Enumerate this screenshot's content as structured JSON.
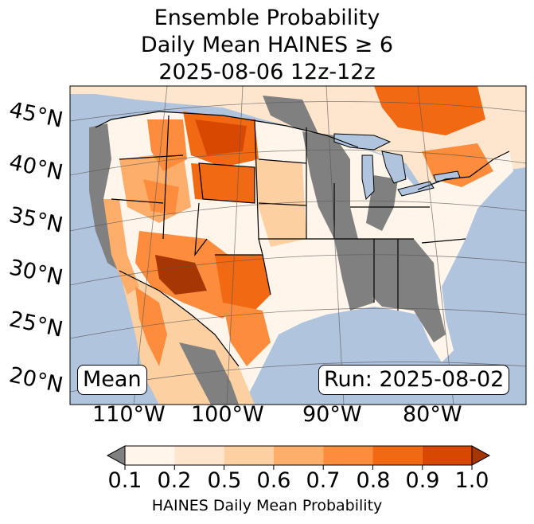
{
  "title": {
    "line1": "Ensemble Probability",
    "line2": "Daily Mean HAINES ≥ 6",
    "line3": "2025-08-06 12z-12z"
  },
  "lat_labels": [
    "45°N",
    "40°N",
    "35°N",
    "30°N",
    "25°N",
    "20°N"
  ],
  "lon_labels": [
    "110°W",
    "100°W",
    "90°W",
    "80°W"
  ],
  "mean_label": "Mean",
  "run_label": "Run: 2025-08-02",
  "colorbar": {
    "ticks": [
      "0.1",
      "0.2",
      "0.5",
      "0.6",
      "0.7",
      "0.8",
      "0.9",
      "1.0"
    ],
    "colors": [
      "#fff5eb",
      "#fee6ce",
      "#fdd0a2",
      "#fdae6b",
      "#fd8d3c",
      "#f16913",
      "#d94801",
      "#a63603"
    ],
    "under_color": "#808080",
    "label": "HAINES Daily Mean Probability"
  },
  "colors": {
    "ocean": "#b0c4de",
    "land_none": "#808080",
    "lakes": "#b0c4de"
  }
}
